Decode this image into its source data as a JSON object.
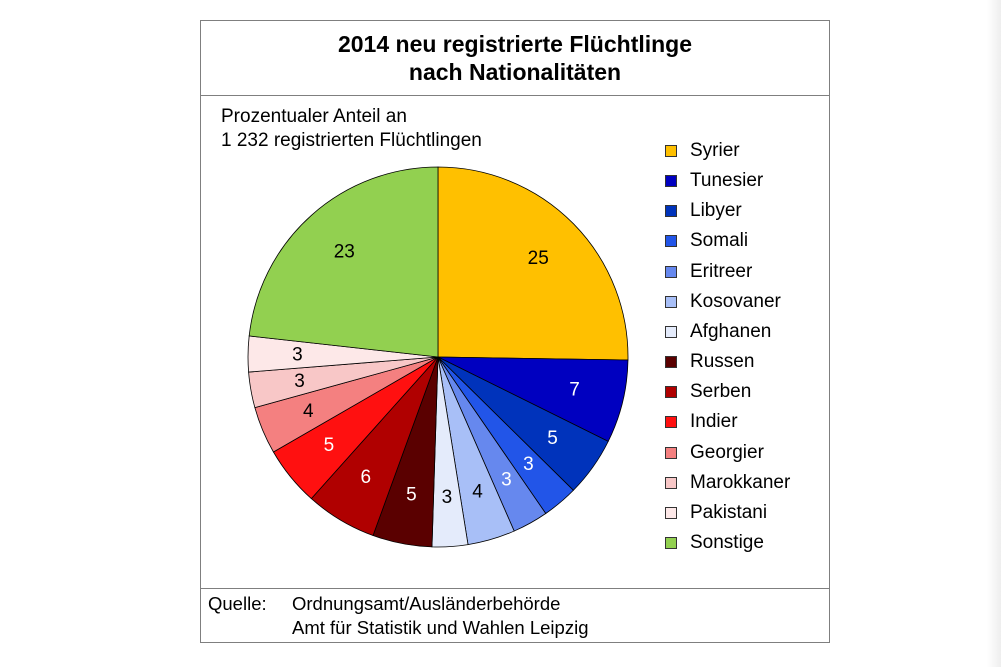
{
  "title_lines": [
    "2014 neu registrierte Flüchtlinge",
    "nach Nationalitäten"
  ],
  "subtitle_lines": [
    "Prozentualer Anteil an",
    "1 232 registrierten Flüchtlingen"
  ],
  "source": {
    "label": "Quelle:",
    "lines": [
      "Ordnungsamt/Ausländerbehörde",
      "Amt für Statistik und Wahlen Leipzig"
    ]
  },
  "chart_data": {
    "type": "pie",
    "categories": [
      "Syrier",
      "Tunesier",
      "Libyer",
      "Somali",
      "Eritreer",
      "Kosovaner",
      "Afghanen",
      "Russen",
      "Serben",
      "Indier",
      "Georgier",
      "Marokkaner",
      "Pakistani",
      "Sonstige"
    ],
    "values": [
      25,
      7,
      5,
      3,
      3,
      4,
      3,
      5,
      6,
      5,
      4,
      3,
      3,
      23
    ],
    "colors": [
      "#ffc000",
      "#0000c0",
      "#0033bb",
      "#2255e8",
      "#6688ee",
      "#a8bff7",
      "#e4ebfb",
      "#5a0000",
      "#b00000",
      "#ff1010",
      "#f48080",
      "#f8c7c7",
      "#fde8e8",
      "#92d050"
    ],
    "label_colors": [
      "#000000",
      "#ffffff",
      "#ffffff",
      "#ffffff",
      "#ffffff",
      "#000000",
      "#000000",
      "#ffffff",
      "#ffffff",
      "#ffffff",
      "#000000",
      "#000000",
      "#000000",
      "#000000"
    ],
    "start_angle_deg": 0,
    "direction": "clockwise",
    "legend_position": "right"
  }
}
